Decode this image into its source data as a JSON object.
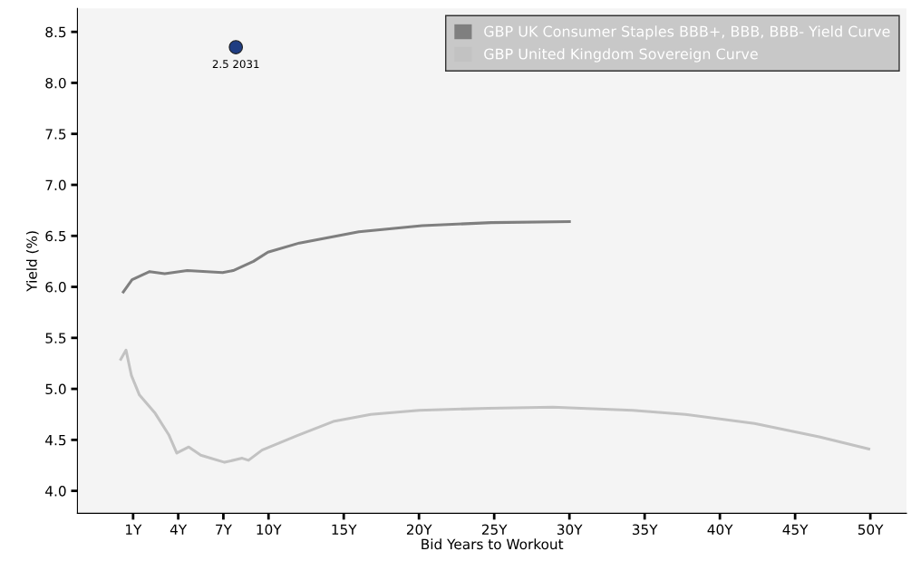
{
  "chart_data": {
    "type": "line",
    "xlabel": "Bid Years to Workout",
    "ylabel": "Yield (%)",
    "xlim": [
      -2.7,
      52.4
    ],
    "ylim": [
      3.78,
      8.73
    ],
    "xticks": [
      {
        "value": 1,
        "label": "1Y"
      },
      {
        "value": 4,
        "label": "4Y"
      },
      {
        "value": 7,
        "label": "7Y"
      },
      {
        "value": 10,
        "label": "10Y"
      },
      {
        "value": 15,
        "label": "15Y"
      },
      {
        "value": 20,
        "label": "20Y"
      },
      {
        "value": 25,
        "label": "25Y"
      },
      {
        "value": 30,
        "label": "30Y"
      },
      {
        "value": 35,
        "label": "35Y"
      },
      {
        "value": 40,
        "label": "40Y"
      },
      {
        "value": 45,
        "label": "45Y"
      },
      {
        "value": 50,
        "label": "50Y"
      }
    ],
    "yticks": [
      {
        "value": 4.0,
        "label": "4.0"
      },
      {
        "value": 4.5,
        "label": "4.5"
      },
      {
        "value": 5.0,
        "label": "5.0"
      },
      {
        "value": 5.5,
        "label": "5.5"
      },
      {
        "value": 6.0,
        "label": "6.0"
      },
      {
        "value": 6.5,
        "label": "6.5"
      },
      {
        "value": 7.0,
        "label": "7.0"
      },
      {
        "value": 7.5,
        "label": "7.5"
      },
      {
        "value": 8.0,
        "label": "8.0"
      },
      {
        "value": 8.5,
        "label": "8.5"
      }
    ],
    "grid": false,
    "legend": "top right",
    "marker": "none",
    "line_style": "solid",
    "series": [
      {
        "name": "GBP UK Consumer Staples BBB+, BBB, BBB- Yield Curve",
        "color": "#7f7f7f",
        "x": [
          0.35,
          0.93,
          2.1,
          3.1,
          4.6,
          6.95,
          7.65,
          9.0,
          9.96,
          12.05,
          16.0,
          20.2,
          24.8,
          30.0
        ],
        "values": [
          5.95,
          6.07,
          6.15,
          6.13,
          6.16,
          6.14,
          6.16,
          6.25,
          6.34,
          6.43,
          6.54,
          6.6,
          6.63,
          6.64
        ]
      },
      {
        "name": "GBP United Kingdom Sovereign Curve",
        "color": "#c2c2c2",
        "x": [
          0.18,
          0.53,
          0.89,
          1.42,
          2.47,
          3.37,
          3.9,
          4.7,
          5.5,
          7.08,
          8.25,
          8.67,
          9.57,
          11.87,
          14.3,
          16.8,
          20.0,
          24.6,
          28.9,
          34.2,
          37.7,
          42.3,
          46.6,
          49.9
        ],
        "values": [
          5.29,
          5.38,
          5.13,
          4.94,
          4.76,
          4.55,
          4.37,
          4.43,
          4.35,
          4.28,
          4.32,
          4.3,
          4.4,
          4.54,
          4.68,
          4.75,
          4.79,
          4.81,
          4.82,
          4.79,
          4.75,
          4.66,
          4.53,
          4.41
        ]
      },
      {
        "type": "scatter",
        "color": "#1f3d82",
        "marker": "circle",
        "x": [
          7.83
        ],
        "values": [
          8.35
        ]
      }
    ],
    "annotations": [
      {
        "text": "2.5 2031",
        "x": 7.83,
        "y": 8.35
      }
    ]
  }
}
